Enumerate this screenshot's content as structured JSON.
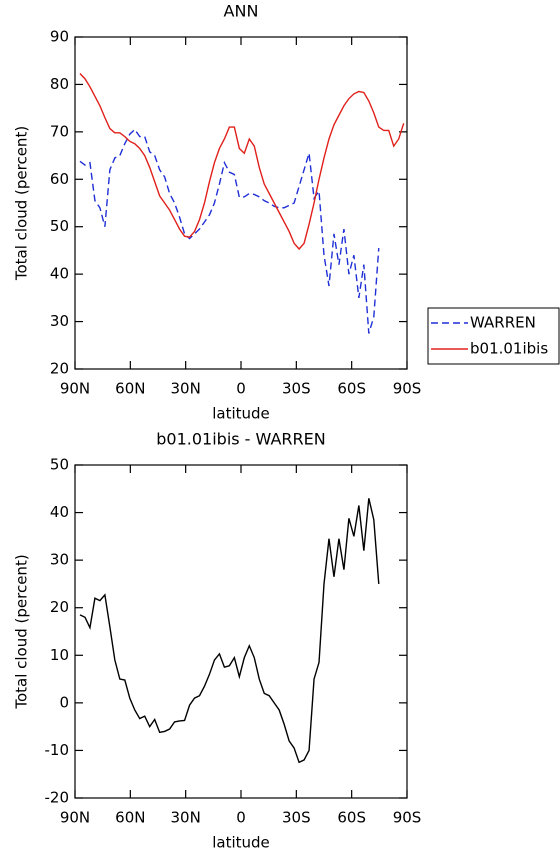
{
  "chart_data": [
    {
      "type": "line",
      "title": "ANN",
      "xlabel": "latitude",
      "ylabel": "Total cloud (percent)",
      "xlim": [
        90,
        -90
      ],
      "ylim": [
        20,
        90
      ],
      "xticks": [
        {
          "value": 90,
          "label": "90N"
        },
        {
          "value": 60,
          "label": "60N"
        },
        {
          "value": 30,
          "label": "30N"
        },
        0,
        {
          "value": -30,
          "label": "30S"
        },
        {
          "value": -60,
          "label": "60S"
        },
        {
          "value": -90,
          "label": "90S"
        }
      ],
      "yticks": [
        20,
        30,
        40,
        50,
        60,
        70,
        80,
        90
      ],
      "legend": "outside-right",
      "x": [
        87.3,
        84.6,
        81.9,
        79.2,
        76.5,
        73.8,
        71.1,
        68.4,
        65.7,
        63,
        60.3,
        57.6,
        54.9,
        52.2,
        49.5,
        46.8,
        44.1,
        41.4,
        38.7,
        36,
        33.3,
        30.6,
        27.9,
        25.2,
        22.5,
        19.8,
        17.1,
        14.4,
        11.7,
        9,
        6.3,
        3.6,
        0.9,
        -1.8,
        -4.5,
        -7.2,
        -9.9,
        -12.6,
        -15.3,
        -18,
        -20.7,
        -23.4,
        -26.1,
        -28.8,
        -31.5,
        -34.2,
        -36.9,
        -39.6,
        -42.3,
        -45,
        -47.7,
        -50.4,
        -53.1,
        -55.8,
        -58.5,
        -61.2,
        -63.9,
        -66.6,
        -69.3,
        -72,
        -74.7,
        -77.4,
        -80.1,
        -82.8,
        -85.5,
        -88.2
      ],
      "series": [
        {
          "name": "WARREN",
          "color": "#1f2fd6",
          "linestyle": "dashed",
          "values": [
            63.8,
            63,
            63.5,
            55.5,
            54,
            50,
            62,
            64.5,
            65,
            67.5,
            69.5,
            70.5,
            69,
            69,
            65.8,
            65,
            62,
            60.5,
            57,
            55,
            52,
            48.5,
            47.5,
            48.5,
            49.5,
            51,
            52.5,
            55,
            59,
            63.5,
            61.5,
            61,
            56.2,
            56.3,
            57,
            56.8,
            56.3,
            55.5,
            55,
            54.3,
            54,
            54,
            54.5,
            55,
            58.5,
            62,
            65.5,
            56,
            57.5,
            44,
            37.5,
            48.5,
            42,
            49.5,
            40,
            44,
            35,
            42,
            27.5,
            31,
            45.5,
            null,
            null,
            null,
            null,
            null
          ]
        },
        {
          "name": "b01.01ibis",
          "color": "#e0201b",
          "linestyle": "solid",
          "values": [
            82.3,
            81.2,
            79.5,
            77.5,
            75.5,
            73,
            70.7,
            69.8,
            69.8,
            69,
            68,
            67.5,
            66.5,
            65,
            62.5,
            59.5,
            56.5,
            55,
            53.5,
            51.5,
            49.5,
            48,
            47.8,
            49,
            51.5,
            55,
            59.5,
            63.5,
            66.5,
            68.5,
            71,
            71,
            66.5,
            65.5,
            68.5,
            67,
            62.5,
            59,
            57,
            55,
            53,
            51,
            49,
            46.5,
            45.3,
            46.5,
            50.5,
            55,
            60,
            64.5,
            68.5,
            71.5,
            73.5,
            75.5,
            77,
            78,
            78.5,
            78.3,
            76.5,
            74,
            71,
            70.3,
            70.3,
            67,
            68.5,
            71.8
          ]
        }
      ]
    },
    {
      "type": "line",
      "title": "b01.01ibis - WARREN",
      "xlabel": "latitude",
      "ylabel": "Total cloud (percent)",
      "xlim": [
        90,
        -90
      ],
      "ylim": [
        -20,
        50
      ],
      "xticks": [
        {
          "value": 90,
          "label": "90N"
        },
        {
          "value": 60,
          "label": "60N"
        },
        {
          "value": 30,
          "label": "30N"
        },
        0,
        {
          "value": -30,
          "label": "30S"
        },
        {
          "value": -60,
          "label": "60S"
        },
        {
          "value": -90,
          "label": "90S"
        }
      ],
      "yticks": [
        -20,
        -10,
        0,
        10,
        20,
        30,
        40,
        50
      ],
      "x": [
        87.3,
        84.6,
        81.9,
        79.2,
        76.5,
        73.8,
        71.1,
        68.4,
        65.7,
        63,
        60.3,
        57.6,
        54.9,
        52.2,
        49.5,
        46.8,
        44.1,
        41.4,
        38.7,
        36,
        33.3,
        30.6,
        27.9,
        25.2,
        22.5,
        19.8,
        17.1,
        14.4,
        11.7,
        9,
        6.3,
        3.6,
        0.9,
        -1.8,
        -4.5,
        -7.2,
        -9.9,
        -12.6,
        -15.3,
        -18,
        -20.7,
        -23.4,
        -26.1,
        -28.8,
        -31.5,
        -34.2,
        -36.9,
        -39.6,
        -42.3,
        -45,
        -47.7,
        -50.4,
        -53.1,
        -55.8,
        -58.5,
        -61.2,
        -63.9,
        -66.6,
        -69.3,
        -72,
        -74.7
      ],
      "series": [
        {
          "color": "#000000",
          "linestyle": "solid",
          "values": [
            18.5,
            18,
            15.8,
            22,
            21.5,
            22.7,
            16,
            9,
            5,
            4.8,
            1,
            -1.5,
            -3.3,
            -2.8,
            -5,
            -3.5,
            -6.2,
            -6,
            -5.5,
            -4,
            -3.8,
            -3.7,
            -0.5,
            1,
            1.5,
            3.5,
            6,
            9,
            10.3,
            7.5,
            7.8,
            9.5,
            5.5,
            9.5,
            12,
            9.5,
            5,
            2,
            1.5,
            0,
            -1.5,
            -4.5,
            -8,
            -9.5,
            -12.5,
            -12,
            -10,
            5,
            8.5,
            25,
            34.5,
            26.5,
            34.5,
            28,
            38.8,
            35,
            41.5,
            32,
            43,
            38.5,
            25
          ]
        }
      ]
    }
  ]
}
